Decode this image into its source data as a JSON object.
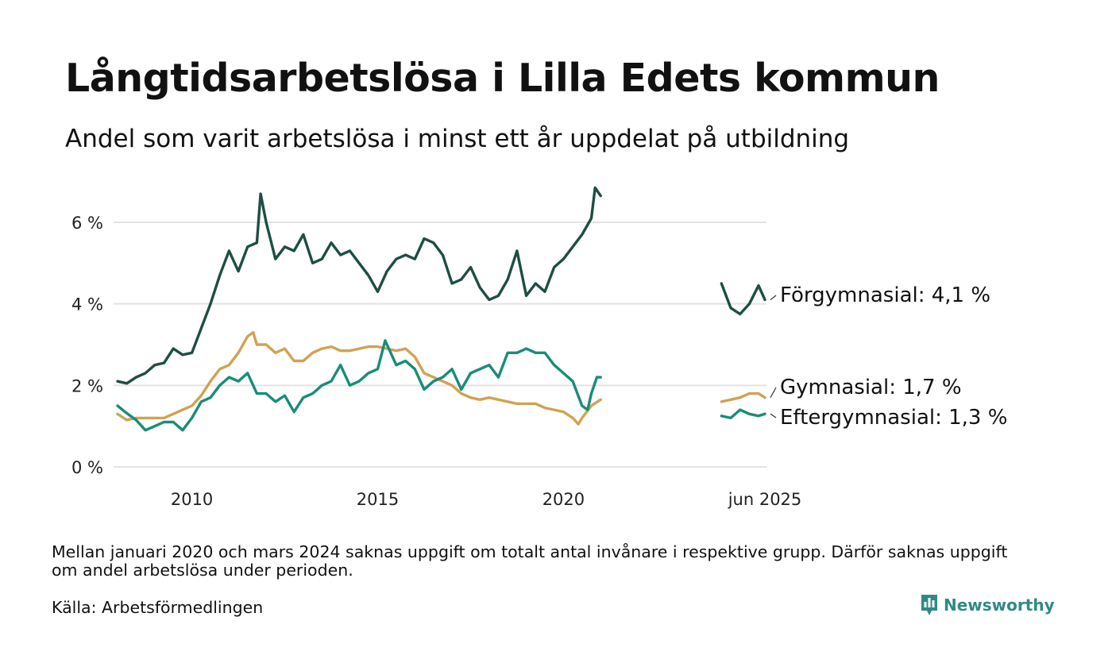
{
  "title": "Långtidsarbetslösa i Lilla Edets kommun",
  "subtitle": "Andel som varit arbetslösa i minst ett år uppdelat på utbildning",
  "footnote": "Mellan januari 2020 och mars 2024 saknas uppgift om totalt antal invånare i respektive grupp. Därför saknas uppgift om andel arbetslösa under perioden.",
  "source": "Källa: Arbetsförmedlingen",
  "brand": {
    "name": "Newsworthy",
    "icon": "newsworthy-logo-icon",
    "color": "#2f8a84"
  },
  "chart_data": {
    "type": "line",
    "y_ticks": [
      {
        "value": 0,
        "label": "0 %"
      },
      {
        "value": 2,
        "label": "2 %"
      },
      {
        "value": 4,
        "label": "4 %"
      },
      {
        "value": 6,
        "label": "6 %"
      }
    ],
    "x_ticks": [
      {
        "value": 2010,
        "label": "2010"
      },
      {
        "value": 2015,
        "label": "2015"
      },
      {
        "value": 2020,
        "label": "2020"
      },
      {
        "value": 2025.42,
        "label": "jun 2025"
      }
    ],
    "ylim": [
      0,
      7
    ],
    "grid": true,
    "legend": "direct labels at line ends",
    "series": [
      {
        "name": "Förgymnasial",
        "end_label": "Förgymnasial: 4,1 %",
        "color": "#1f4d45",
        "segments": [
          [
            [
              2008.0,
              2.1
            ],
            [
              2008.25,
              2.05
            ],
            [
              2008.5,
              2.2
            ],
            [
              2008.75,
              2.3
            ],
            [
              2009.0,
              2.5
            ],
            [
              2009.25,
              2.55
            ],
            [
              2009.5,
              2.9
            ],
            [
              2009.75,
              2.75
            ],
            [
              2010.0,
              2.8
            ],
            [
              2010.25,
              3.4
            ],
            [
              2010.5,
              4.0
            ],
            [
              2010.75,
              4.7
            ],
            [
              2011.0,
              5.3
            ],
            [
              2011.25,
              4.8
            ],
            [
              2011.5,
              5.4
            ],
            [
              2011.75,
              5.5
            ],
            [
              2011.85,
              6.7
            ],
            [
              2012.0,
              6.0
            ],
            [
              2012.25,
              5.1
            ],
            [
              2012.5,
              5.4
            ],
            [
              2012.75,
              5.3
            ],
            [
              2013.0,
              5.7
            ],
            [
              2013.25,
              5.0
            ],
            [
              2013.5,
              5.1
            ],
            [
              2013.75,
              5.5
            ],
            [
              2014.0,
              5.2
            ],
            [
              2014.25,
              5.3
            ],
            [
              2014.5,
              5.0
            ],
            [
              2014.75,
              4.7
            ],
            [
              2015.0,
              4.3
            ],
            [
              2015.25,
              4.8
            ],
            [
              2015.5,
              5.1
            ],
            [
              2015.75,
              5.2
            ],
            [
              2016.0,
              5.1
            ],
            [
              2016.25,
              5.6
            ],
            [
              2016.5,
              5.5
            ],
            [
              2016.75,
              5.2
            ],
            [
              2017.0,
              4.5
            ],
            [
              2017.25,
              4.6
            ],
            [
              2017.5,
              4.9
            ],
            [
              2017.75,
              4.4
            ],
            [
              2018.0,
              4.1
            ],
            [
              2018.25,
              4.2
            ],
            [
              2018.5,
              4.6
            ],
            [
              2018.75,
              5.3
            ],
            [
              2019.0,
              4.2
            ],
            [
              2019.25,
              4.5
            ],
            [
              2019.5,
              4.3
            ],
            [
              2019.75,
              4.9
            ],
            [
              2020.0,
              5.1
            ],
            [
              2020.25,
              5.4
            ],
            [
              2020.5,
              5.7
            ],
            [
              2020.75,
              6.1
            ],
            [
              2020.85,
              6.85
            ],
            [
              2021.0,
              6.65
            ]
          ],
          [
            [
              2024.25,
              4.5
            ],
            [
              2024.5,
              3.9
            ],
            [
              2024.75,
              3.75
            ],
            [
              2025.0,
              4.0
            ],
            [
              2025.25,
              4.45
            ],
            [
              2025.42,
              4.1
            ]
          ]
        ]
      },
      {
        "name": "Gymnasial",
        "end_label": "Gymnasial: 1,7 %",
        "color": "#d1a254",
        "segments": [
          [
            [
              2008.0,
              1.3
            ],
            [
              2008.25,
              1.15
            ],
            [
              2008.5,
              1.2
            ],
            [
              2008.75,
              1.2
            ],
            [
              2009.0,
              1.2
            ],
            [
              2009.25,
              1.2
            ],
            [
              2009.5,
              1.3
            ],
            [
              2009.75,
              1.4
            ],
            [
              2010.0,
              1.5
            ],
            [
              2010.25,
              1.75
            ],
            [
              2010.5,
              2.1
            ],
            [
              2010.75,
              2.4
            ],
            [
              2011.0,
              2.5
            ],
            [
              2011.25,
              2.8
            ],
            [
              2011.5,
              3.2
            ],
            [
              2011.65,
              3.3
            ],
            [
              2011.75,
              3.0
            ],
            [
              2012.0,
              3.0
            ],
            [
              2012.25,
              2.8
            ],
            [
              2012.5,
              2.9
            ],
            [
              2012.75,
              2.6
            ],
            [
              2013.0,
              2.6
            ],
            [
              2013.25,
              2.8
            ],
            [
              2013.5,
              2.9
            ],
            [
              2013.75,
              2.95
            ],
            [
              2014.0,
              2.85
            ],
            [
              2014.25,
              2.85
            ],
            [
              2014.5,
              2.9
            ],
            [
              2014.75,
              2.95
            ],
            [
              2015.0,
              2.95
            ],
            [
              2015.25,
              2.9
            ],
            [
              2015.5,
              2.85
            ],
            [
              2015.75,
              2.9
            ],
            [
              2016.0,
              2.7
            ],
            [
              2016.25,
              2.3
            ],
            [
              2016.5,
              2.2
            ],
            [
              2016.75,
              2.1
            ],
            [
              2017.0,
              2.0
            ],
            [
              2017.25,
              1.8
            ],
            [
              2017.5,
              1.7
            ],
            [
              2017.75,
              1.65
            ],
            [
              2018.0,
              1.7
            ],
            [
              2018.25,
              1.65
            ],
            [
              2018.5,
              1.6
            ],
            [
              2018.75,
              1.55
            ],
            [
              2019.0,
              1.55
            ],
            [
              2019.25,
              1.55
            ],
            [
              2019.5,
              1.45
            ],
            [
              2019.75,
              1.4
            ],
            [
              2020.0,
              1.35
            ],
            [
              2020.25,
              1.2
            ],
            [
              2020.4,
              1.05
            ],
            [
              2020.5,
              1.2
            ],
            [
              2020.75,
              1.5
            ],
            [
              2021.0,
              1.65
            ]
          ],
          [
            [
              2024.25,
              1.6
            ],
            [
              2024.5,
              1.65
            ],
            [
              2024.75,
              1.7
            ],
            [
              2025.0,
              1.8
            ],
            [
              2025.25,
              1.8
            ],
            [
              2025.42,
              1.7
            ]
          ]
        ]
      },
      {
        "name": "Eftergymnasial",
        "end_label": "Eftergymnasial: 1,3 %",
        "color": "#1a8c78",
        "segments": [
          [
            [
              2008.0,
              1.5
            ],
            [
              2008.2,
              1.35
            ],
            [
              2008.5,
              1.15
            ],
            [
              2008.75,
              0.9
            ],
            [
              2009.0,
              1.0
            ],
            [
              2009.25,
              1.1
            ],
            [
              2009.5,
              1.1
            ],
            [
              2009.75,
              0.9
            ],
            [
              2010.0,
              1.2
            ],
            [
              2010.25,
              1.6
            ],
            [
              2010.5,
              1.7
            ],
            [
              2010.75,
              2.0
            ],
            [
              2011.0,
              2.2
            ],
            [
              2011.25,
              2.1
            ],
            [
              2011.5,
              2.3
            ],
            [
              2011.75,
              1.8
            ],
            [
              2012.0,
              1.8
            ],
            [
              2012.25,
              1.6
            ],
            [
              2012.5,
              1.75
            ],
            [
              2012.75,
              1.35
            ],
            [
              2013.0,
              1.7
            ],
            [
              2013.25,
              1.8
            ],
            [
              2013.5,
              2.0
            ],
            [
              2013.75,
              2.1
            ],
            [
              2014.0,
              2.5
            ],
            [
              2014.25,
              2.0
            ],
            [
              2014.5,
              2.1
            ],
            [
              2014.75,
              2.3
            ],
            [
              2015.0,
              2.4
            ],
            [
              2015.2,
              3.1
            ],
            [
              2015.5,
              2.5
            ],
            [
              2015.75,
              2.6
            ],
            [
              2016.0,
              2.4
            ],
            [
              2016.25,
              1.9
            ],
            [
              2016.5,
              2.1
            ],
            [
              2016.75,
              2.2
            ],
            [
              2017.0,
              2.4
            ],
            [
              2017.25,
              1.9
            ],
            [
              2017.5,
              2.3
            ],
            [
              2017.75,
              2.4
            ],
            [
              2018.0,
              2.5
            ],
            [
              2018.25,
              2.2
            ],
            [
              2018.5,
              2.8
            ],
            [
              2018.75,
              2.8
            ],
            [
              2019.0,
              2.9
            ],
            [
              2019.25,
              2.8
            ],
            [
              2019.5,
              2.8
            ],
            [
              2019.75,
              2.5
            ],
            [
              2020.0,
              2.3
            ],
            [
              2020.25,
              2.1
            ],
            [
              2020.5,
              1.5
            ],
            [
              2020.65,
              1.4
            ],
            [
              2020.75,
              1.8
            ],
            [
              2020.9,
              2.2
            ],
            [
              2021.0,
              2.2
            ]
          ],
          [
            [
              2024.25,
              1.25
            ],
            [
              2024.5,
              1.2
            ],
            [
              2024.75,
              1.4
            ],
            [
              2025.0,
              1.3
            ],
            [
              2025.25,
              1.25
            ],
            [
              2025.42,
              1.3
            ]
          ]
        ]
      }
    ]
  }
}
